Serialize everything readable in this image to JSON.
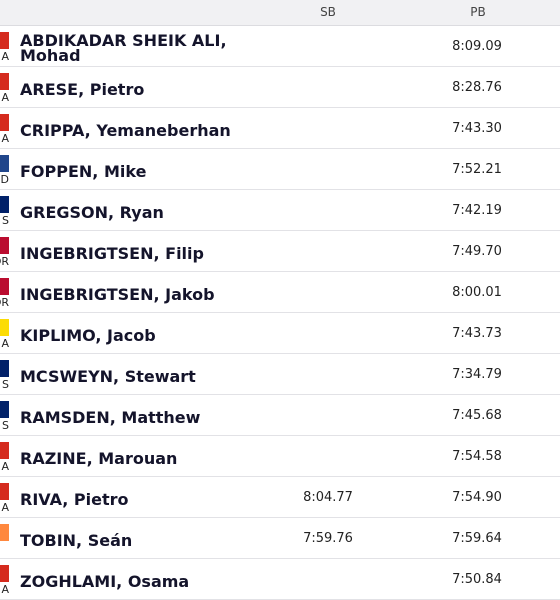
{
  "header": {
    "sb": "SB",
    "pb": "PB"
  },
  "rows": [
    {
      "code": "A",
      "flag": "#d52b1e",
      "name": "ABDIKADAR SHEIK ALI, Mohad",
      "pb": "8:09.09"
    },
    {
      "code": "A",
      "flag": "#d52b1e",
      "name": "ARESE, Pietro",
      "pb": "8:28.76"
    },
    {
      "code": "A",
      "flag": "#d52b1e",
      "name": "CRIPPA, Yemaneberhan",
      "pb": "7:43.30"
    },
    {
      "code": "D",
      "flag": "#21468b",
      "name": "FOPPEN, Mike",
      "pb": "7:52.21"
    },
    {
      "code": "S",
      "flag": "#012169",
      "name": "GREGSON, Ryan",
      "pb": "7:42.19"
    },
    {
      "code": "OR",
      "flag": "#ba0c2f",
      "name": "INGEBRIGTSEN, Filip",
      "pb": "7:49.70"
    },
    {
      "code": "OR",
      "flag": "#ba0c2f",
      "name": "INGEBRIGTSEN, Jakob",
      "pb": "8:00.01"
    },
    {
      "code": "A",
      "flag": "#fcdc04",
      "name": "KIPLIMO, Jacob",
      "pb": "7:43.73"
    },
    {
      "code": "S",
      "flag": "#012169",
      "name": "MCSWEYN, Stewart",
      "pb": "7:34.79"
    },
    {
      "code": "S",
      "flag": "#012169",
      "name": "RAMSDEN, Matthew",
      "pb": "7:45.68"
    },
    {
      "code": "A",
      "flag": "#d52b1e",
      "name": "RAZINE, Marouan",
      "pb": "7:54.58"
    },
    {
      "code": "A",
      "flag": "#d52b1e",
      "name": "RIVA, Pietro",
      "sb": "8:04.77",
      "pb": "7:54.90"
    },
    {
      "flag": "#ff883e",
      "name": "TOBIN, Seán",
      "sb": "7:59.76",
      "pb": "7:59.64"
    },
    {
      "code": "A",
      "flag": "#d52b1e",
      "name": "ZOGHLAMI, Osama",
      "pb": "7:50.84"
    }
  ]
}
